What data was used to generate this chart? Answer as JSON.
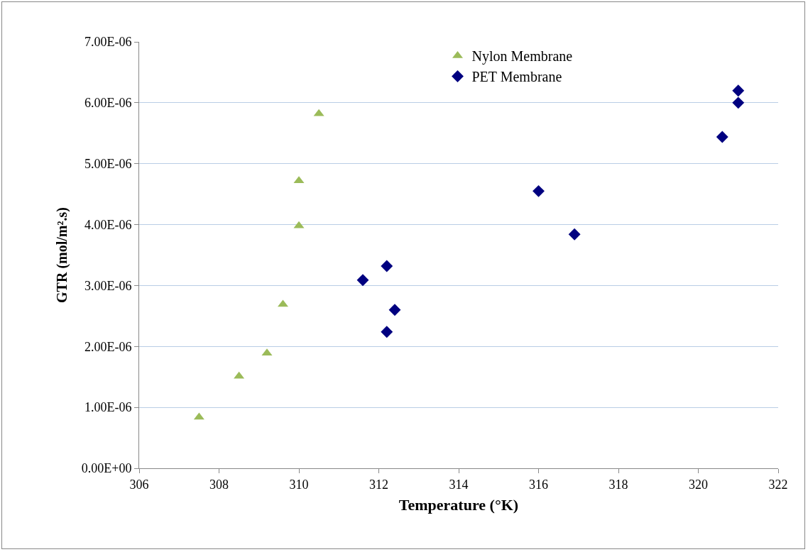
{
  "chart_data": {
    "type": "scatter",
    "xlabel": "Temperature (°K)",
    "ylabel": "GTR (mol/m².s)",
    "series": [
      {
        "name": "Nylon Membrane",
        "color": "#9bbb59",
        "marker": "triangle",
        "x": [
          307.5,
          308.5,
          309.2,
          309.6,
          310.0,
          310.0,
          310.5
        ],
        "values": [
          8.4e-07,
          1.51e-06,
          1.89e-06,
          2.69e-06,
          3.98e-06,
          4.72e-06,
          5.82e-06
        ]
      },
      {
        "name": "PET Membrane",
        "color": "#000080",
        "marker": "diamond",
        "x": [
          311.6,
          312.2,
          312.4,
          312.2,
          316.0,
          316.9,
          320.6,
          321.0,
          321.0
        ],
        "values": [
          3.09e-06,
          3.32e-06,
          2.6e-06,
          2.24e-06,
          4.55e-06,
          3.84e-06,
          5.44e-06,
          6e-06,
          6.2e-06
        ]
      }
    ],
    "xlim": [
      306,
      322
    ],
    "xticks": [
      306,
      308,
      310,
      312,
      314,
      316,
      318,
      320,
      322
    ],
    "ylim": [
      0,
      7e-06
    ],
    "yticks": [
      {
        "value": 0,
        "label": "0.00E+00"
      },
      {
        "value": 1e-06,
        "label": "1.00E-06"
      },
      {
        "value": 2e-06,
        "label": "2.00E-06"
      },
      {
        "value": 3e-06,
        "label": "3.00E-06"
      },
      {
        "value": 4e-06,
        "label": "4.00E-06"
      },
      {
        "value": 5e-06,
        "label": "5.00E-06"
      },
      {
        "value": 6e-06,
        "label": "6.00E-06"
      },
      {
        "value": 7e-06,
        "label": "7.00E-06"
      }
    ],
    "grid": "y",
    "legend": "top"
  }
}
